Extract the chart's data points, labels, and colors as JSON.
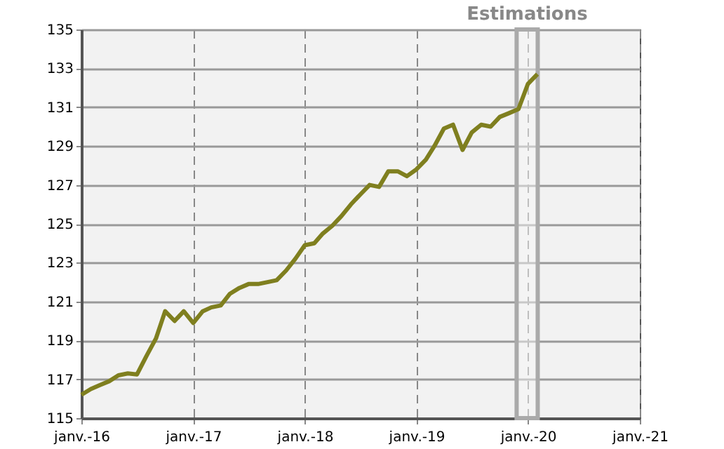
{
  "chart_data": {
    "type": "line",
    "x": [
      "2016-01",
      "2016-02",
      "2016-03",
      "2016-04",
      "2016-05",
      "2016-06",
      "2016-07",
      "2016-08",
      "2016-09",
      "2016-10",
      "2016-11",
      "2016-12",
      "2017-01",
      "2017-02",
      "2017-03",
      "2017-04",
      "2017-05",
      "2017-06",
      "2017-07",
      "2017-08",
      "2017-09",
      "2017-10",
      "2017-11",
      "2017-12",
      "2018-01",
      "2018-02",
      "2018-03",
      "2018-04",
      "2018-05",
      "2018-06",
      "2018-07",
      "2018-08",
      "2018-09",
      "2018-10",
      "2018-11",
      "2018-12",
      "2019-01",
      "2019-02",
      "2019-03",
      "2019-04",
      "2019-05",
      "2019-06",
      "2019-07",
      "2019-08",
      "2019-09",
      "2019-10",
      "2019-11",
      "2019-12",
      "2020-01",
      "2020-02"
    ],
    "series": [
      {
        "color": "#7f7f1f",
        "values": [
          116.2,
          116.5,
          116.7,
          116.9,
          117.2,
          117.3,
          117.25,
          118.2,
          119.1,
          120.5,
          120.0,
          120.5,
          119.9,
          120.5,
          120.7,
          120.8,
          121.4,
          121.7,
          121.9,
          121.9,
          122.0,
          122.1,
          122.6,
          123.2,
          123.9,
          124.0,
          124.5,
          124.9,
          125.4,
          126.0,
          126.5,
          127.0,
          126.9,
          127.7,
          127.7,
          127.45,
          127.8,
          128.3,
          129.0,
          129.9,
          130.1,
          128.8,
          129.7,
          130.1,
          130.0,
          130.5,
          130.7,
          130.9,
          132.2,
          132.7
        ]
      }
    ],
    "xlim": [
      "2016-01",
      "2021-01"
    ],
    "xticks": [
      {
        "value": "2016-01",
        "label": "janv.-16"
      },
      {
        "value": "2017-01",
        "label": "janv.-17"
      },
      {
        "value": "2018-01",
        "label": "janv.-18"
      },
      {
        "value": "2019-01",
        "label": "janv.-19"
      },
      {
        "value": "2020-01",
        "label": "janv.-20"
      },
      {
        "value": "2021-01",
        "label": "janv.-21"
      }
    ],
    "ylim": [
      115,
      135
    ],
    "yticks": [
      115,
      117,
      119,
      121,
      123,
      125,
      127,
      129,
      131,
      133,
      135
    ],
    "bands": [
      {
        "axis": "x",
        "from": "2019-11-25",
        "to": "2020-02-02",
        "label": "Estimations",
        "color": "#aaaaaa"
      }
    ],
    "grid": true,
    "marker": "none",
    "line_style": "solid"
  }
}
